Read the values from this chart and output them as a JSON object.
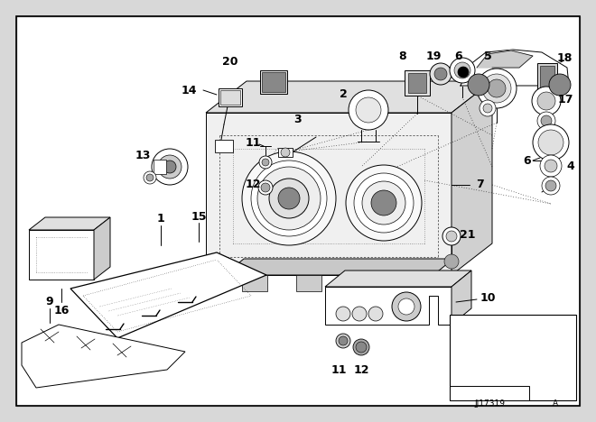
{
  "bg_color": "#d8d8d8",
  "inner_bg": "#ffffff",
  "line_color": "#000000",
  "diagram_num": "JJ17319",
  "diagram_page": "A",
  "fig_w": 6.4,
  "fig_h": 4.48
}
